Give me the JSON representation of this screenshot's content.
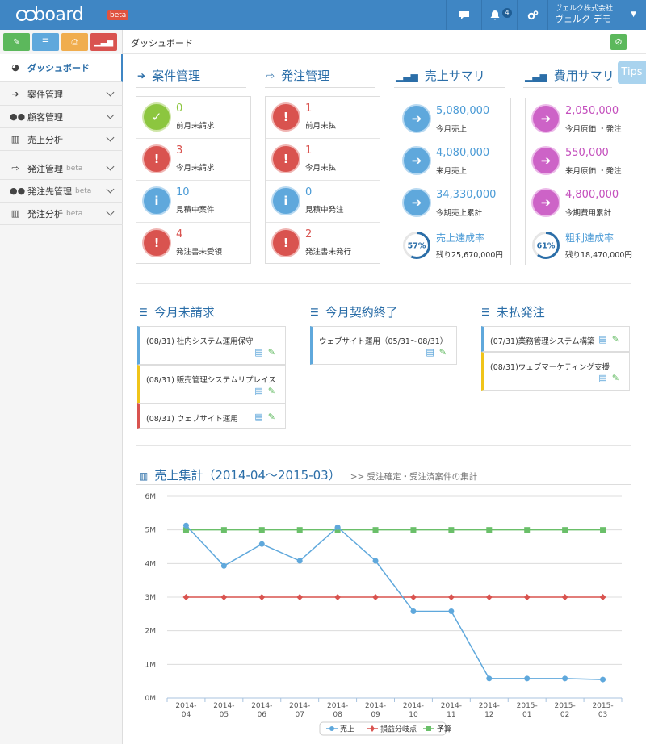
{
  "header": {
    "logo": "board",
    "beta": "beta",
    "notification_count": "4",
    "company": "ヴェルク株式会社",
    "user": "ヴェルク デモ"
  },
  "sidebar": {
    "items": [
      {
        "label": "ダッシュボード",
        "sub": ""
      },
      {
        "label": "案件管理",
        "sub": ""
      },
      {
        "label": "顧客管理",
        "sub": ""
      },
      {
        "label": "売上分析",
        "sub": ""
      },
      {
        "label": "発注管理",
        "sub": "beta"
      },
      {
        "label": "発注先管理",
        "sub": "beta"
      },
      {
        "label": "発注分析",
        "sub": "beta"
      }
    ]
  },
  "breadcrumb": "ダッシュボード",
  "tips": "Tips",
  "sections": {
    "anken": {
      "title": "案件管理",
      "rows": [
        {
          "value": "0",
          "label": "前月未請求"
        },
        {
          "value": "3",
          "label": "今月未請求"
        },
        {
          "value": "10",
          "label": "見積中案件"
        },
        {
          "value": "4",
          "label": "発注書未受領"
        }
      ]
    },
    "hacchu": {
      "title": "発注管理",
      "rows": [
        {
          "value": "1",
          "label": "前月未払"
        },
        {
          "value": "1",
          "label": "今月未払"
        },
        {
          "value": "0",
          "label": "見積中発注"
        },
        {
          "value": "2",
          "label": "発注書未発行"
        }
      ]
    },
    "uriage": {
      "title": "売上サマリ",
      "rows": [
        {
          "value": "5,080,000",
          "label": "今月売上"
        },
        {
          "value": "4,080,000",
          "label": "来月売上"
        },
        {
          "value": "34,330,000",
          "label": "今期売上累計"
        },
        {
          "value": "売上達成率",
          "label": "残り25,670,000円",
          "percent": "57%",
          "fraction": 0.57
        }
      ]
    },
    "hiyou": {
      "title": "費用サマリ",
      "rows": [
        {
          "value": "2,050,000",
          "label": "今月原価 ・発注"
        },
        {
          "value": "550,000",
          "label": "来月原価 ・発注"
        },
        {
          "value": "4,800,000",
          "label": "今期費用累計"
        },
        {
          "value": "粗利達成率",
          "label": "残り18,470,000円",
          "percent": "61%",
          "fraction": 0.61
        }
      ]
    }
  },
  "lists": {
    "unbilled": {
      "title": "今月未請求",
      "items": [
        "(08/31) 社内システム運用保守",
        "(08/31) 販売管理システムリプレイス",
        "(08/31) ウェブサイト運用"
      ]
    },
    "contract_end": {
      "title": "今月契約終了",
      "items": [
        "ウェブサイト運用（05/31〜08/31）"
      ]
    },
    "unpaid": {
      "title": "未払発注",
      "items": [
        "(07/31)業務管理システム構築",
        "(08/31)ウェブマーケティング支援"
      ]
    }
  },
  "chart_title": "売上集計（2014-04〜2015-03）",
  "chart_subtitle": ">> 受注確定・受注済案件の集計",
  "chart_data": {
    "type": "line",
    "categories": [
      "2014-04",
      "2014-05",
      "2014-06",
      "2014-07",
      "2014-08",
      "2014-09",
      "2014-10",
      "2014-11",
      "2014-12",
      "2015-01",
      "2015-02",
      "2015-03"
    ],
    "ytick_labels": [
      "0M",
      "1M",
      "2M",
      "3M",
      "4M",
      "5M",
      "6M"
    ],
    "ylim": [
      0,
      6000000
    ],
    "grid": true,
    "legend_position": "bottom",
    "series": [
      {
        "name": "売上",
        "color": "#5fa8dc",
        "marker": "circle",
        "values": [
          5130000,
          3930000,
          4580000,
          4080000,
          5080000,
          4080000,
          2580000,
          2580000,
          580000,
          580000,
          580000,
          550000
        ]
      },
      {
        "name": "損益分岐点",
        "color": "#d9534f",
        "marker": "diamond",
        "values": [
          3000000,
          3000000,
          3000000,
          3000000,
          3000000,
          3000000,
          3000000,
          3000000,
          3000000,
          3000000,
          3000000,
          3000000
        ]
      },
      {
        "name": "予算",
        "color": "#6abf69",
        "marker": "square",
        "values": [
          5000000,
          5000000,
          5000000,
          5000000,
          5000000,
          5000000,
          5000000,
          5000000,
          5000000,
          5000000,
          5000000,
          5000000
        ]
      }
    ]
  },
  "colors": {
    "header": "#3f86c4",
    "accent": "#2b6ea8",
    "green": "#8cc63f",
    "red": "#d9534f",
    "blue": "#5fa8dc",
    "purple": "#cd63c7"
  }
}
